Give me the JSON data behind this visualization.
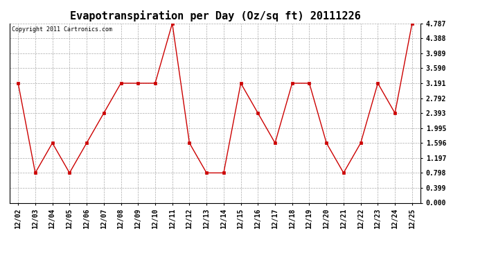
{
  "title": "Evapotranspiration per Day (Oz/sq ft) 20111226",
  "copyright": "Copyright 2011 Cartronics.com",
  "x_labels": [
    "12/02",
    "12/03",
    "12/04",
    "12/05",
    "12/06",
    "12/07",
    "12/08",
    "12/09",
    "12/10",
    "12/11",
    "12/12",
    "12/13",
    "12/14",
    "12/15",
    "12/16",
    "12/17",
    "12/18",
    "12/19",
    "12/20",
    "12/21",
    "12/22",
    "12/23",
    "12/24",
    "12/25"
  ],
  "y_values": [
    3.191,
    0.798,
    1.596,
    0.798,
    1.596,
    2.393,
    3.191,
    3.191,
    3.191,
    4.787,
    1.596,
    0.798,
    0.798,
    3.191,
    2.393,
    1.596,
    3.191,
    3.191,
    1.596,
    0.798,
    1.596,
    3.191,
    2.393,
    4.787
  ],
  "line_color": "#cc0000",
  "marker_color": "#cc0000",
  "background_color": "#ffffff",
  "grid_color": "#aaaaaa",
  "ylim": [
    0.0,
    4.787
  ],
  "yticks": [
    0.0,
    0.399,
    0.798,
    1.197,
    1.596,
    1.995,
    2.393,
    2.792,
    3.191,
    3.59,
    3.989,
    4.388,
    4.787
  ],
  "title_fontsize": 11,
  "copyright_fontsize": 6,
  "tick_fontsize": 7,
  "figwidth": 6.9,
  "figheight": 3.75,
  "dpi": 100
}
